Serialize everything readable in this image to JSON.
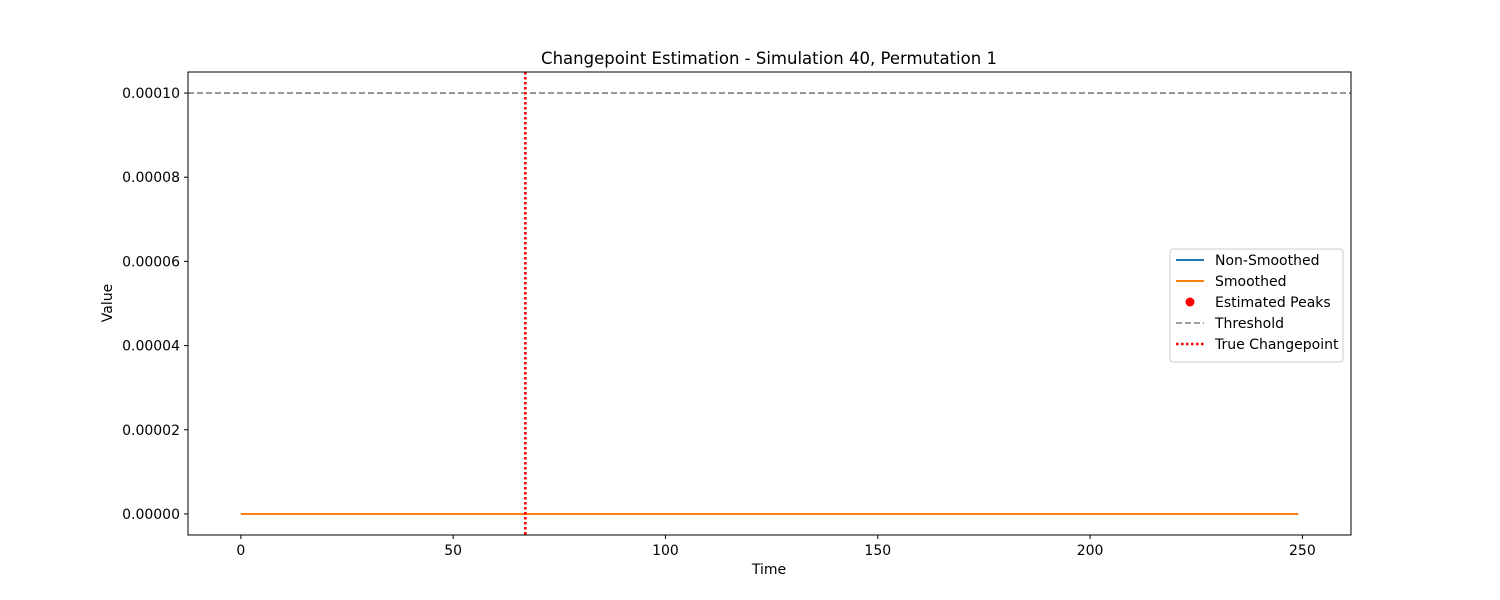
{
  "chart_data": {
    "type": "line",
    "title": "Changepoint Estimation - Simulation 40, Permutation 1",
    "xlabel": "Time",
    "ylabel": "Value",
    "xlim": [
      -12.45,
      261.45
    ],
    "ylim": [
      -5e-06,
      0.000105
    ],
    "xticks": [
      0,
      50,
      100,
      150,
      200,
      250
    ],
    "xtick_labels": [
      "0",
      "50",
      "100",
      "150",
      "200",
      "250"
    ],
    "yticks": [
      0,
      2e-05,
      4e-05,
      6e-05,
      8e-05,
      0.0001
    ],
    "ytick_labels": [
      "0.00000",
      "0.00002",
      "0.00004",
      "0.00006",
      "0.00008",
      "0.00010"
    ],
    "grid": false,
    "legend_position": "center-right",
    "series": [
      {
        "name": "Non-Smoothed",
        "kind": "line",
        "color": "#1f77b4",
        "x": [
          0,
          249
        ],
        "y": [
          0,
          0
        ]
      },
      {
        "name": "Smoothed",
        "kind": "line",
        "color": "#ff7f0e",
        "x": [
          0,
          249
        ],
        "y": [
          0,
          0
        ]
      },
      {
        "name": "Estimated Peaks",
        "kind": "scatter",
        "color": "#ff0000",
        "x": [],
        "y": []
      },
      {
        "name": "Threshold",
        "kind": "hline",
        "color": "#808080",
        "style": "dashed",
        "y": 0.0001
      },
      {
        "name": "True Changepoint",
        "kind": "vline",
        "color": "#ff0000",
        "style": "dotted",
        "x": 67
      }
    ]
  }
}
